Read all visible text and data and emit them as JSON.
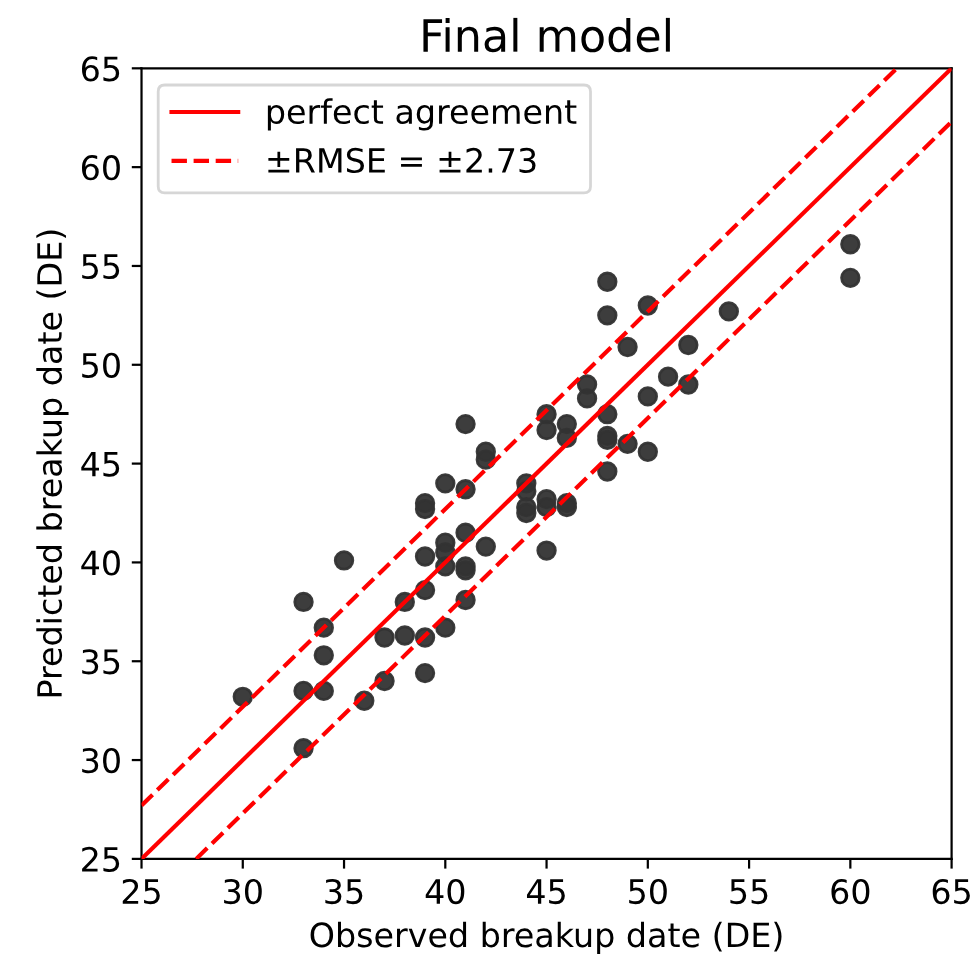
{
  "chart_data": {
    "type": "scatter",
    "title": "Final model",
    "xlabel": "Observed breakup date (DE)",
    "ylabel": "Predicted breakup date (DE)",
    "xlim": [
      25,
      65
    ],
    "ylim": [
      25,
      65
    ],
    "xticks": [
      25,
      30,
      35,
      40,
      45,
      50,
      55,
      60,
      65
    ],
    "yticks": [
      25,
      30,
      35,
      40,
      45,
      50,
      55,
      60,
      65
    ],
    "grid": false,
    "legend": "top left",
    "series": [
      {
        "color": "#333333",
        "marker": "circle",
        "x": [
          30,
          33,
          33,
          33,
          34,
          34,
          34,
          35,
          36,
          37,
          37,
          38,
          38,
          39,
          39,
          39,
          39,
          39,
          39,
          40,
          40,
          40,
          40,
          40,
          41,
          41,
          41,
          41,
          41,
          41,
          42,
          42,
          42,
          44,
          44,
          44,
          44,
          45,
          45,
          45,
          45,
          45,
          46,
          46,
          46,
          46,
          47,
          47,
          48,
          48,
          48,
          48,
          48,
          48,
          49,
          49,
          50,
          50,
          50,
          51,
          52,
          52,
          54,
          60,
          60
        ],
        "values": [
          33.2,
          38,
          33.5,
          30.6,
          36.7,
          35.3,
          33.5,
          40.1,
          33,
          36.2,
          34,
          38,
          36.3,
          43,
          42.7,
          40.3,
          38.6,
          36.2,
          34.4,
          44,
          41,
          40.5,
          39.8,
          36.7,
          47,
          43.7,
          41.5,
          39.8,
          39.6,
          38.1,
          45.6,
          45.2,
          40.8,
          44,
          43.6,
          42.8,
          42.5,
          47.5,
          46.7,
          43.2,
          42.8,
          40.6,
          47,
          46.3,
          43,
          42.8,
          49,
          48.3,
          54.2,
          52.5,
          47.5,
          46.4,
          46.2,
          44.6,
          50.9,
          46,
          53,
          48.4,
          45.6,
          49.4,
          51,
          49,
          52.7,
          56.1,
          54.4
        ]
      },
      {
        "type": "line",
        "name": "perfect agreement",
        "color": "#ff0000",
        "line_style": "solid",
        "marker": "none",
        "x": [
          25,
          65
        ],
        "values": [
          25,
          65
        ]
      },
      {
        "type": "line",
        "name": "±RMSE = ±2.73",
        "color": "#ff0000",
        "line_style": "dashed",
        "marker": "none",
        "x": [
          25,
          62.3
        ],
        "values": [
          27.7,
          65
        ]
      },
      {
        "type": "line",
        "color": "#ff0000",
        "line_style": "dashed",
        "marker": "none",
        "x": [
          27.7,
          65
        ],
        "values": [
          25,
          62.3
        ]
      }
    ]
  }
}
